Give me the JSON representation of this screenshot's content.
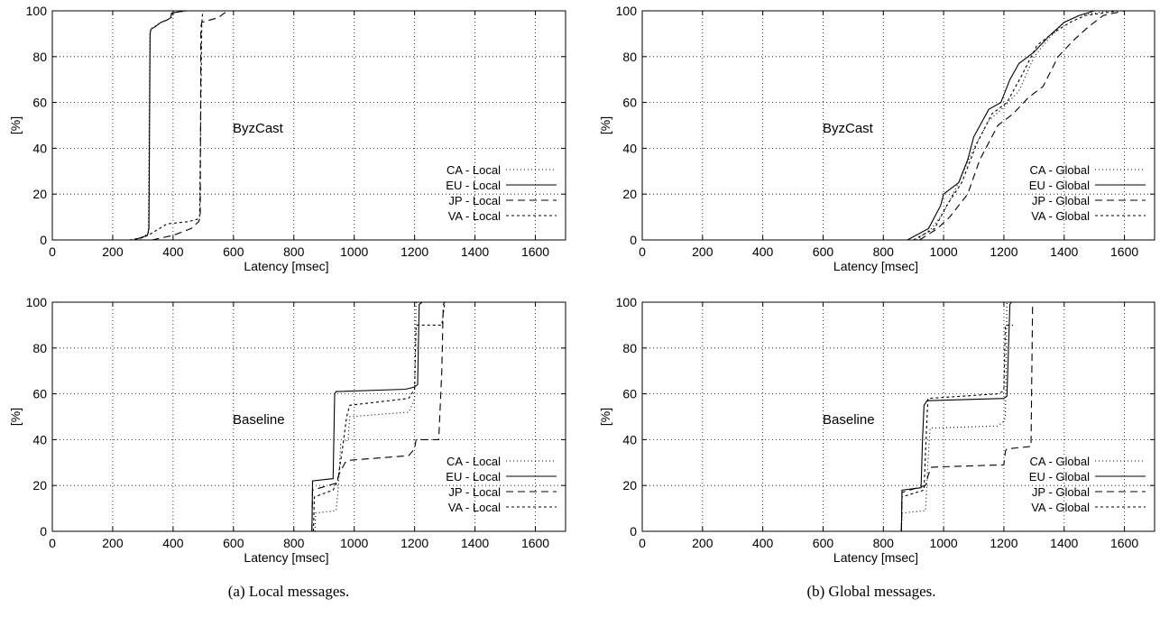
{
  "captions": {
    "a": "(a) Local messages.",
    "b": "(b) Global messages."
  },
  "chart_data": [
    {
      "type": "line",
      "id": "local-byzcast",
      "label": "ByzCast",
      "xlabel": "Latency [msec]",
      "ylabel": "[%]",
      "xlim": [
        0,
        1700
      ],
      "ylim": [
        0,
        100
      ],
      "xticks": [
        0,
        200,
        400,
        600,
        800,
        1000,
        1200,
        1400,
        1600
      ],
      "yticks": [
        0,
        20,
        40,
        60,
        80,
        100
      ],
      "grid": true,
      "legend_position": "bottom-right",
      "series": [
        {
          "name": "CA - Local",
          "dash": "1,3",
          "x": [
            290,
            318,
            323,
            326,
            335,
            360,
            380,
            395,
            398,
            450,
            460
          ],
          "y": [
            0,
            3,
            90,
            92,
            93,
            95,
            96,
            97,
            99,
            100,
            100
          ]
        },
        {
          "name": "EU - Local",
          "dash": "",
          "x": [
            270,
            315,
            320,
            324,
            327,
            340,
            360,
            380,
            392,
            395,
            440
          ],
          "y": [
            0,
            2,
            5,
            90,
            92,
            93,
            95,
            96,
            97,
            99,
            100
          ]
        },
        {
          "name": "JP - Local",
          "dash": "8,5",
          "x": [
            330,
            400,
            460,
            485,
            490,
            492,
            495,
            550,
            580
          ],
          "y": [
            0,
            2,
            5,
            8,
            10,
            93,
            95,
            97,
            100
          ]
        },
        {
          "name": "VA - Local",
          "dash": "3,3",
          "x": [
            255,
            300,
            330,
            380,
            450,
            480,
            488,
            492,
            495,
            498
          ],
          "y": [
            0,
            1,
            3,
            7,
            8,
            9,
            10,
            60,
            94,
            100
          ]
        }
      ]
    },
    {
      "type": "line",
      "id": "global-byzcast",
      "label": "ByzCast",
      "xlabel": "Latency [msec]",
      "ylabel": "[%]",
      "xlim": [
        0,
        1700
      ],
      "ylim": [
        0,
        100
      ],
      "xticks": [
        0,
        200,
        400,
        600,
        800,
        1000,
        1200,
        1400,
        1600
      ],
      "yticks": [
        0,
        20,
        40,
        60,
        80,
        100
      ],
      "grid": true,
      "legend_position": "bottom-right",
      "series": [
        {
          "name": "CA - Global",
          "dash": "1,3",
          "x": [
            910,
            960,
            1000,
            1050,
            1100,
            1150,
            1200,
            1250,
            1300,
            1350,
            1400,
            1450,
            1500,
            1550
          ],
          "y": [
            0,
            5,
            12,
            25,
            40,
            52,
            58,
            65,
            80,
            88,
            95,
            98,
            99,
            100
          ]
        },
        {
          "name": "EU - Global",
          "dash": "",
          "x": [
            880,
            950,
            990,
            1000,
            1050,
            1080,
            1100,
            1150,
            1190,
            1220,
            1250,
            1300,
            1350,
            1400,
            1450,
            1500
          ],
          "y": [
            0,
            5,
            15,
            20,
            25,
            35,
            45,
            57,
            60,
            70,
            77,
            82,
            89,
            95,
            98,
            100
          ]
        },
        {
          "name": "JP - Global",
          "dash": "8,5",
          "x": [
            920,
            980,
            1020,
            1080,
            1120,
            1180,
            1230,
            1280,
            1330,
            1380,
            1430,
            1480,
            1530,
            1600
          ],
          "y": [
            0,
            5,
            10,
            20,
            35,
            50,
            55,
            62,
            67,
            80,
            87,
            93,
            98,
            100
          ]
        },
        {
          "name": "VA - Global",
          "dash": "3,3",
          "x": [
            900,
            970,
            1010,
            1060,
            1110,
            1160,
            1210,
            1260,
            1310,
            1360,
            1420,
            1470,
            1530,
            1580
          ],
          "y": [
            0,
            5,
            15,
            25,
            42,
            55,
            60,
            72,
            85,
            90,
            95,
            98,
            99,
            100
          ]
        }
      ]
    },
    {
      "type": "line",
      "id": "local-baseline",
      "label": "Baseline",
      "xlabel": "Latency [msec]",
      "ylabel": "[%]",
      "xlim": [
        0,
        1700
      ],
      "ylim": [
        0,
        100
      ],
      "xticks": [
        0,
        200,
        400,
        600,
        800,
        1000,
        1200,
        1400,
        1600
      ],
      "yticks": [
        0,
        20,
        40,
        60,
        80,
        100
      ],
      "grid": true,
      "legend_position": "bottom-right",
      "series": [
        {
          "name": "CA - Local",
          "dash": "1,3",
          "x": [
            870,
            872,
            940,
            948,
            955,
            980,
            985,
            1180,
            1195,
            1200,
            1205,
            1210,
            1212
          ],
          "y": [
            0,
            8,
            9,
            20,
            38,
            40,
            50,
            52,
            56,
            58,
            100,
            100,
            100
          ]
        },
        {
          "name": "EU - Local",
          "dash": "",
          "x": [
            860,
            862,
            930,
            935,
            940,
            1170,
            1200,
            1210,
            1215,
            1225
          ],
          "y": [
            0,
            22,
            23,
            60,
            61,
            62,
            63,
            64,
            99,
            100
          ]
        },
        {
          "name": "JP - Local",
          "dash": "8,5",
          "x": [
            860,
            862,
            940,
            950,
            970,
            980,
            1180,
            1200,
            1205,
            1280,
            1290,
            1295,
            1300
          ],
          "y": [
            0,
            18,
            21,
            25,
            30,
            31,
            33,
            36,
            40,
            40,
            70,
            99,
            100
          ]
        },
        {
          "name": "VA - Local",
          "dash": "3,3",
          "x": [
            865,
            868,
            930,
            945,
            960,
            975,
            985,
            1180,
            1190,
            1200,
            1205,
            1290,
            1300
          ],
          "y": [
            0,
            15,
            18,
            22,
            35,
            50,
            55,
            58,
            60,
            62,
            90,
            90,
            100
          ]
        }
      ]
    },
    {
      "type": "line",
      "id": "global-baseline",
      "label": "Baseline",
      "xlabel": "Latency [msec]",
      "ylabel": "[%]",
      "xlim": [
        0,
        1700
      ],
      "ylim": [
        0,
        100
      ],
      "xticks": [
        0,
        200,
        400,
        600,
        800,
        1000,
        1200,
        1400,
        1600
      ],
      "yticks": [
        0,
        20,
        40,
        60,
        80,
        100
      ],
      "grid": true,
      "legend_position": "bottom-right",
      "series": [
        {
          "name": "CA - Global",
          "dash": "1,3",
          "x": [
            860,
            862,
            940,
            948,
            955,
            1180,
            1190,
            1200,
            1205,
            1210
          ],
          "y": [
            0,
            8,
            9,
            30,
            45,
            46,
            47,
            48,
            50,
            100
          ]
        },
        {
          "name": "EU - Global",
          "dash": "",
          "x": [
            860,
            862,
            925,
            930,
            935,
            945,
            1200,
            1210,
            1220,
            1225
          ],
          "y": [
            0,
            18,
            19,
            40,
            55,
            57,
            58,
            59,
            99,
            100
          ]
        },
        {
          "name": "JP - Global",
          "dash": "8,5",
          "x": [
            860,
            862,
            940,
            950,
            960,
            1200,
            1205,
            1210,
            1290,
            1295,
            1300
          ],
          "y": [
            0,
            17,
            20,
            25,
            28,
            29,
            35,
            36,
            37,
            98,
            100
          ]
        },
        {
          "name": "VA - Global",
          "dash": "3,3",
          "x": [
            860,
            862,
            935,
            940,
            948,
            1180,
            1195,
            1200,
            1205,
            1230
          ],
          "y": [
            0,
            15,
            18,
            35,
            58,
            60,
            61,
            62,
            90,
            90
          ]
        }
      ]
    }
  ]
}
